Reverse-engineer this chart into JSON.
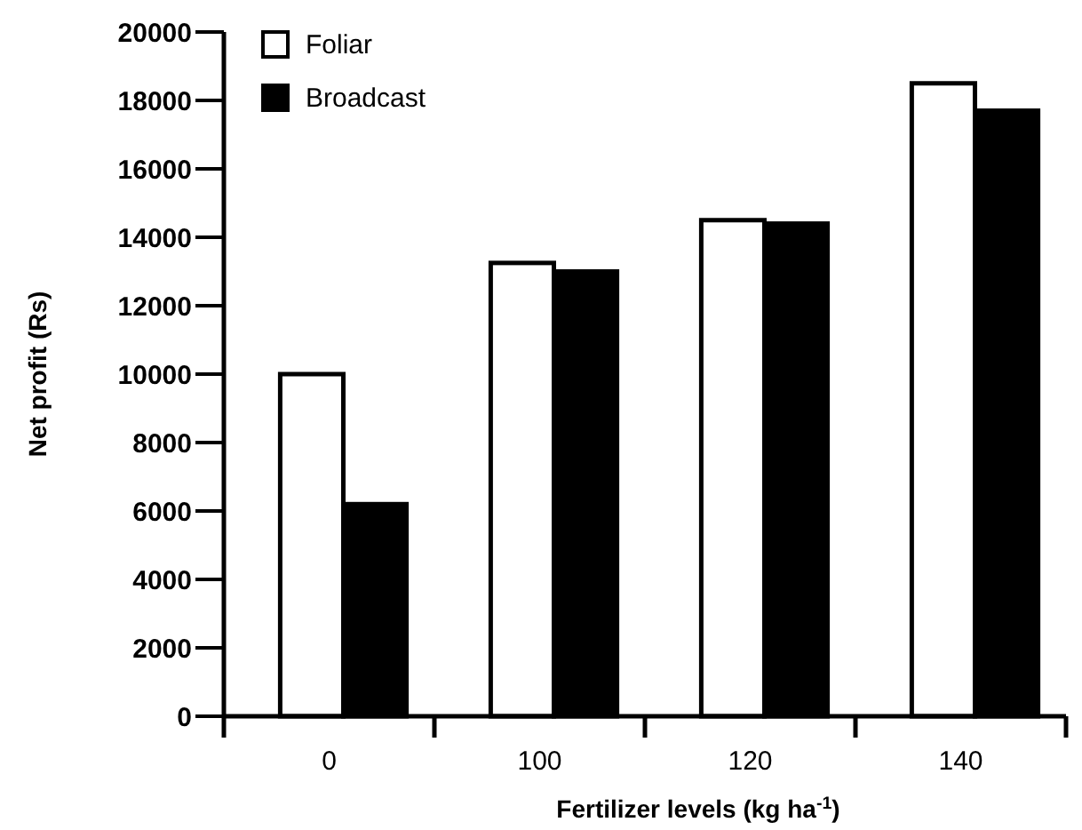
{
  "chart_data": {
    "type": "bar",
    "xlabel": "Fertilizer levels (kg ha$^{-1}$)",
    "ylabel": "Net profit (Rs)",
    "categories": [
      "0",
      "100",
      "120",
      "140"
    ],
    "series": [
      {
        "name": "Foliar",
        "color": "#ffffff",
        "values": [
          10000,
          13250,
          14500,
          18500
        ]
      },
      {
        "name": "Broadcast",
        "color": "#000000",
        "values": [
          6200,
          13000,
          14400,
          17700
        ]
      }
    ],
    "ylim": [
      0,
      20000
    ],
    "yticks": [
      0,
      2000,
      4000,
      6000,
      8000,
      10000,
      12000,
      14000,
      16000,
      18000,
      20000
    ],
    "grid": false,
    "legend": "top left"
  }
}
